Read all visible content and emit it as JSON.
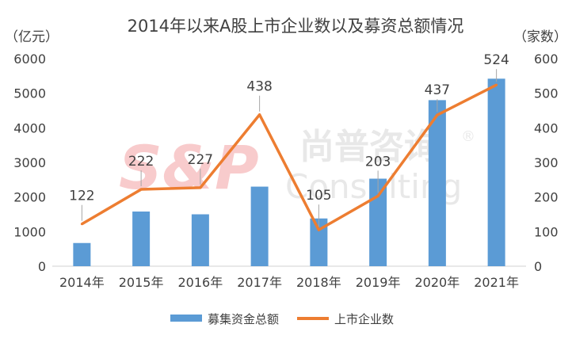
{
  "chart_data": {
    "type": "bar",
    "title": "2014年以来A股上市企业数以及募资总额情况",
    "left_unit": "（亿元）",
    "right_unit": "（家数）",
    "categories": [
      "2014年",
      "2015年",
      "2016年",
      "2017年",
      "2018年",
      "2019年",
      "2020年",
      "2021年"
    ],
    "left_axis": {
      "min": 0,
      "max": 6000,
      "ticks": [
        "0",
        "1000",
        "2000",
        "3000",
        "4000",
        "5000",
        "6000"
      ]
    },
    "right_axis": {
      "min": 0,
      "max": 600,
      "ticks": [
        "0",
        "100",
        "200",
        "300",
        "400",
        "500",
        "600"
      ]
    },
    "series": [
      {
        "name": "募集资金总额",
        "type": "bar",
        "axis": "left",
        "color": "#5b9bd5",
        "values": [
          670,
          1580,
          1500,
          2300,
          1380,
          2530,
          4800,
          5420
        ]
      },
      {
        "name": "上市企业数",
        "type": "line",
        "axis": "right",
        "color": "#ed7d31",
        "values": [
          122,
          222,
          227,
          438,
          105,
          203,
          437,
          524
        ],
        "labels": [
          "122",
          "222",
          "227",
          "438",
          "105",
          "203",
          "437",
          "524"
        ]
      }
    ],
    "grid": false,
    "legend": "bottom",
    "watermark": {
      "logo_text": "S&P",
      "cn_text": "尚普咨询",
      "en_text": "Consulting",
      "mark": "®"
    }
  }
}
